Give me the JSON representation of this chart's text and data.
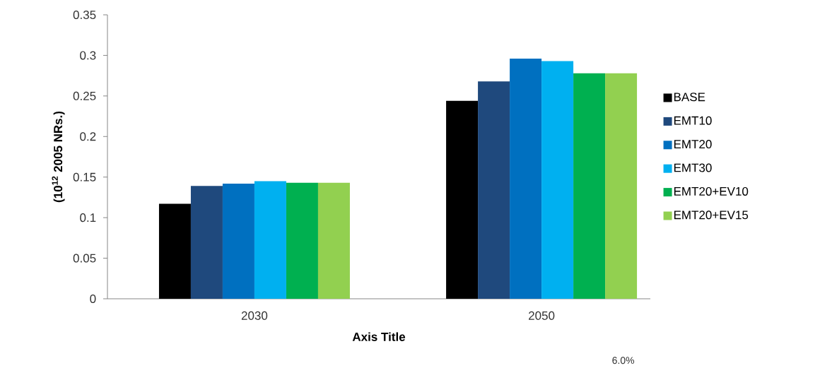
{
  "chart_data": {
    "type": "bar",
    "xlabel": "Axis Title",
    "ylabel": "(10$^{12}$ 2005 NRs.)",
    "categories": [
      "2030",
      "2050"
    ],
    "series": [
      {
        "name": "BASE",
        "color": "#000000",
        "values": [
          0.117,
          0.244
        ]
      },
      {
        "name": "EMT10",
        "color": "#1f497d",
        "values": [
          0.139,
          0.268
        ]
      },
      {
        "name": "EMT20",
        "color": "#0070c0",
        "values": [
          0.142,
          0.296
        ]
      },
      {
        "name": "EMT30",
        "color": "#00b0f0",
        "values": [
          0.145,
          0.293
        ]
      },
      {
        "name": "EMT20+EV10",
        "color": "#00b050",
        "values": [
          0.143,
          0.278
        ]
      },
      {
        "name": "EMT20+EV15",
        "color": "#92d050",
        "values": [
          0.143,
          0.278
        ]
      }
    ],
    "ylim": [
      0,
      0.35
    ],
    "yticks": [
      0,
      0.05,
      0.1,
      0.15,
      0.2,
      0.25,
      0.3,
      0.35
    ],
    "legend": "right",
    "grid": false,
    "annotations": [
      "6.0%"
    ]
  }
}
